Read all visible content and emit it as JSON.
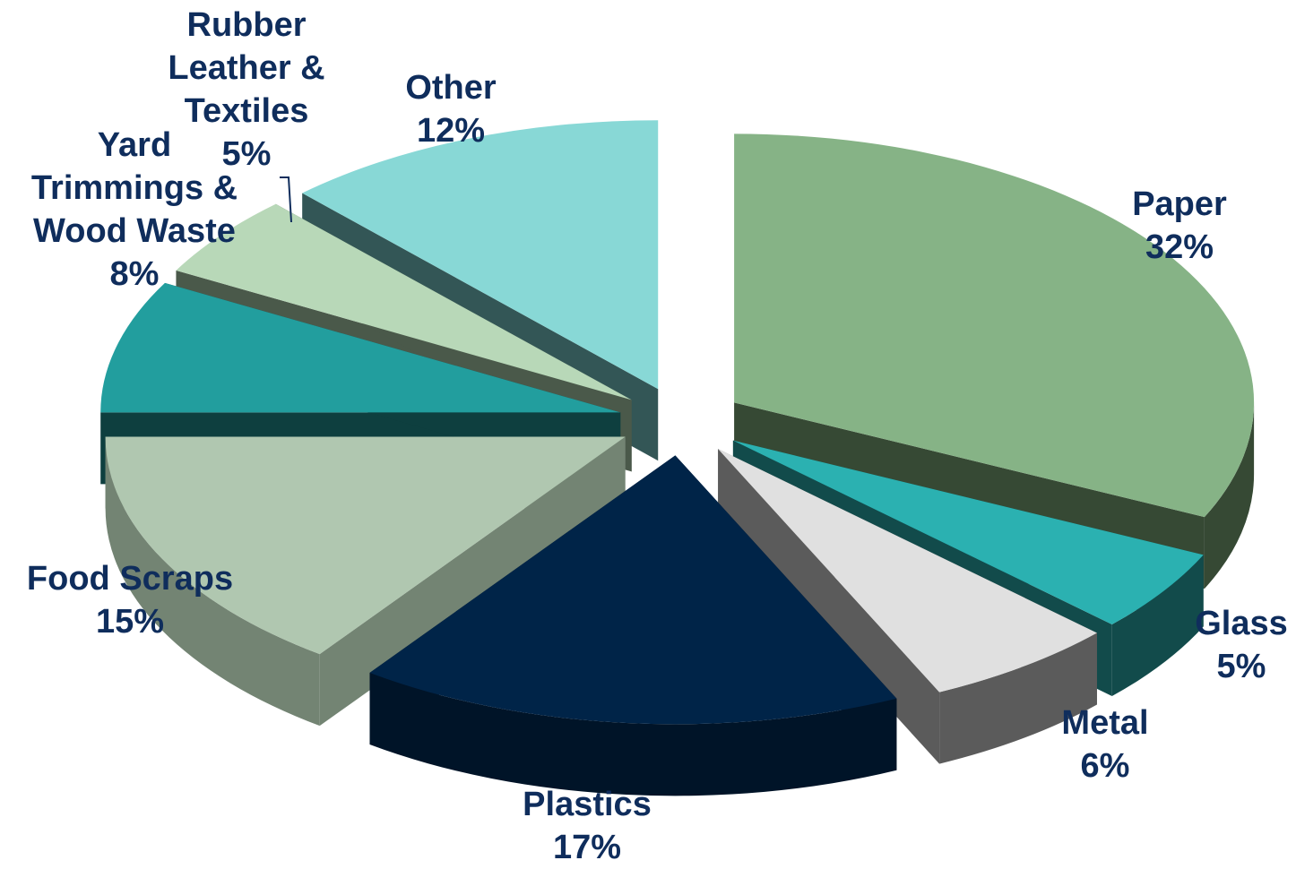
{
  "chart_data": {
    "type": "pie",
    "title": "",
    "colors": {
      "label_text": "#0f2d5c"
    },
    "slices": [
      {
        "name": "Paper",
        "lines": [
          "Paper"
        ],
        "pct_label": "32%",
        "value": 32,
        "top": "#86b386",
        "side": "#364934"
      },
      {
        "name": "Glass",
        "lines": [
          "Glass"
        ],
        "pct_label": "5%",
        "value": 5,
        "top": "#2bb1b1",
        "side": "#124b4b"
      },
      {
        "name": "Metal",
        "lines": [
          "Metal"
        ],
        "pct_label": "6%",
        "value": 6,
        "top": "#e0e0e0",
        "side": "#5b5b5b"
      },
      {
        "name": "Plastics",
        "lines": [
          "Plastics"
        ],
        "pct_label": "17%",
        "value": 17,
        "top": "#002448",
        "side": "#001428"
      },
      {
        "name": "Food Scraps",
        "lines": [
          "Food Scraps"
        ],
        "pct_label": "15%",
        "value": 15,
        "top": "#b0c7b0",
        "side": "#738473"
      },
      {
        "name": "Yard Trimmings & Wood Waste",
        "lines": [
          "Yard",
          "Trimmings  &",
          "Wood Waste"
        ],
        "pct_label": "8%",
        "value": 8,
        "top": "#229e9e",
        "side": "#0e3f3f"
      },
      {
        "name": "Rubber Leather & Textiles",
        "lines": [
          "Rubber",
          "Leather &",
          "Textiles"
        ],
        "pct_label": "5%",
        "value": 5,
        "top": "#b8d8b8",
        "side": "#4a594a"
      },
      {
        "name": "Other",
        "lines": [
          "Other"
        ],
        "pct_label": "12%",
        "value": 12,
        "top": "#88d8d6",
        "side": "#335656"
      }
    ]
  }
}
